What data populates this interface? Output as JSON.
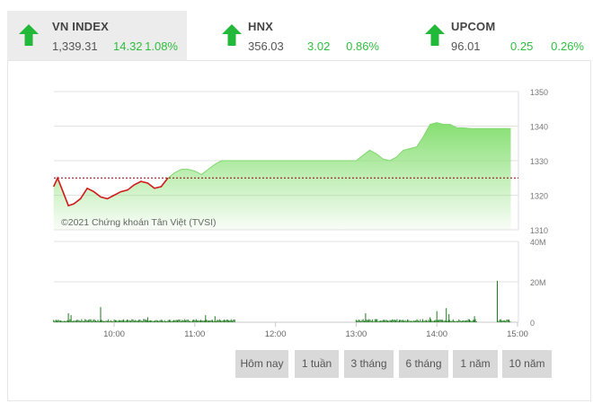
{
  "indices": [
    {
      "name": "VN INDEX",
      "value": "1,339.31",
      "change": "14.32",
      "percent": "1.08%",
      "direction": "up",
      "active": true
    },
    {
      "name": "HNX",
      "value": "356.03",
      "change": "3.02",
      "percent": "0.86%",
      "direction": "up",
      "active": false
    },
    {
      "name": "UPCOM",
      "value": "96.01",
      "change": "0.25",
      "percent": "0.26%",
      "direction": "up",
      "active": false
    }
  ],
  "colors": {
    "up": "#22b83a",
    "below_ref_line": "#d11a1a",
    "area_fill": "#8fe17f",
    "volume": "#1e7a1e",
    "reference_line": "#8b0000"
  },
  "watermark": "©2021 Chứng khoán Tân Việt (TVSI)",
  "range_buttons": [
    "Hôm nay",
    "1 tuần",
    "3 tháng",
    "6 tháng",
    "1 năm",
    "10 năm"
  ],
  "chart_data": [
    {
      "type": "area",
      "title": "VN INDEX intraday",
      "xlabel": "",
      "ylabel": "",
      "x_ticks": [
        "10:00",
        "11:00",
        "12:00",
        "13:00",
        "14:00",
        "15:00"
      ],
      "y_ticks": [
        1310,
        1320,
        1330,
        1340,
        1350
      ],
      "ylim": [
        1310,
        1350
      ],
      "reference": 1325.0,
      "grid": true,
      "y_axis_position": "right",
      "x": [
        "09:15",
        "09:18",
        "09:22",
        "09:26",
        "09:30",
        "09:35",
        "09:40",
        "09:45",
        "09:50",
        "09:55",
        "10:00",
        "10:05",
        "10:10",
        "10:15",
        "10:20",
        "10:25",
        "10:30",
        "10:35",
        "10:40",
        "10:45",
        "10:50",
        "10:55",
        "11:00",
        "11:05",
        "11:10",
        "11:15",
        "11:20",
        "11:25",
        "11:30",
        "13:00",
        "13:05",
        "13:10",
        "13:15",
        "13:20",
        "13:25",
        "13:30",
        "13:35",
        "13:40",
        "13:45",
        "13:50",
        "13:55",
        "14:00",
        "14:05",
        "14:10",
        "14:15",
        "14:20",
        "14:25",
        "14:30",
        "14:35",
        "14:40",
        "14:45"
      ],
      "values": [
        1322.5,
        1325.0,
        1321.0,
        1317.0,
        1317.5,
        1319.0,
        1322.0,
        1321.0,
        1319.5,
        1319.0,
        1320.0,
        1321.0,
        1321.5,
        1323.0,
        1324.0,
        1323.5,
        1322.0,
        1322.5,
        1325.0,
        1326.5,
        1327.5,
        1327.5,
        1327.0,
        1326.0,
        1327.5,
        1329.0,
        1330.0,
        1330.0,
        1330.0,
        1330.0,
        1331.5,
        1333.0,
        1332.0,
        1330.5,
        1330.0,
        1331.0,
        1333.0,
        1333.5,
        1334.0,
        1337.0,
        1340.5,
        1341.0,
        1340.5,
        1340.5,
        1339.5,
        1339.5,
        1339.3,
        1339.3,
        1339.3,
        1339.3,
        1339.31
      ]
    },
    {
      "type": "bar",
      "title": "Volume",
      "y_ticks": [
        "0",
        "20M",
        "40M"
      ],
      "ylim": [
        0,
        40000000
      ],
      "x_ticks": [
        "10:00",
        "11:00",
        "12:00",
        "13:00",
        "14:00",
        "15:00"
      ],
      "notable_bars": [
        {
          "time": "09:26",
          "value": 4500000
        },
        {
          "time": "09:28",
          "value": 3500000
        },
        {
          "time": "09:50",
          "value": 7500000
        },
        {
          "time": "10:25",
          "value": 2500000
        },
        {
          "time": "11:08",
          "value": 3500000
        },
        {
          "time": "11:15",
          "value": 3000000
        },
        {
          "time": "13:07",
          "value": 4500000
        },
        {
          "time": "13:55",
          "value": 2500000
        },
        {
          "time": "14:00",
          "value": 5500000
        },
        {
          "time": "14:07",
          "value": 7000000
        },
        {
          "time": "14:09",
          "value": 4000000
        },
        {
          "time": "14:28",
          "value": 3000000
        },
        {
          "time": "14:45",
          "value": 20500000
        }
      ],
      "baseline_value_approx": 500000
    }
  ]
}
